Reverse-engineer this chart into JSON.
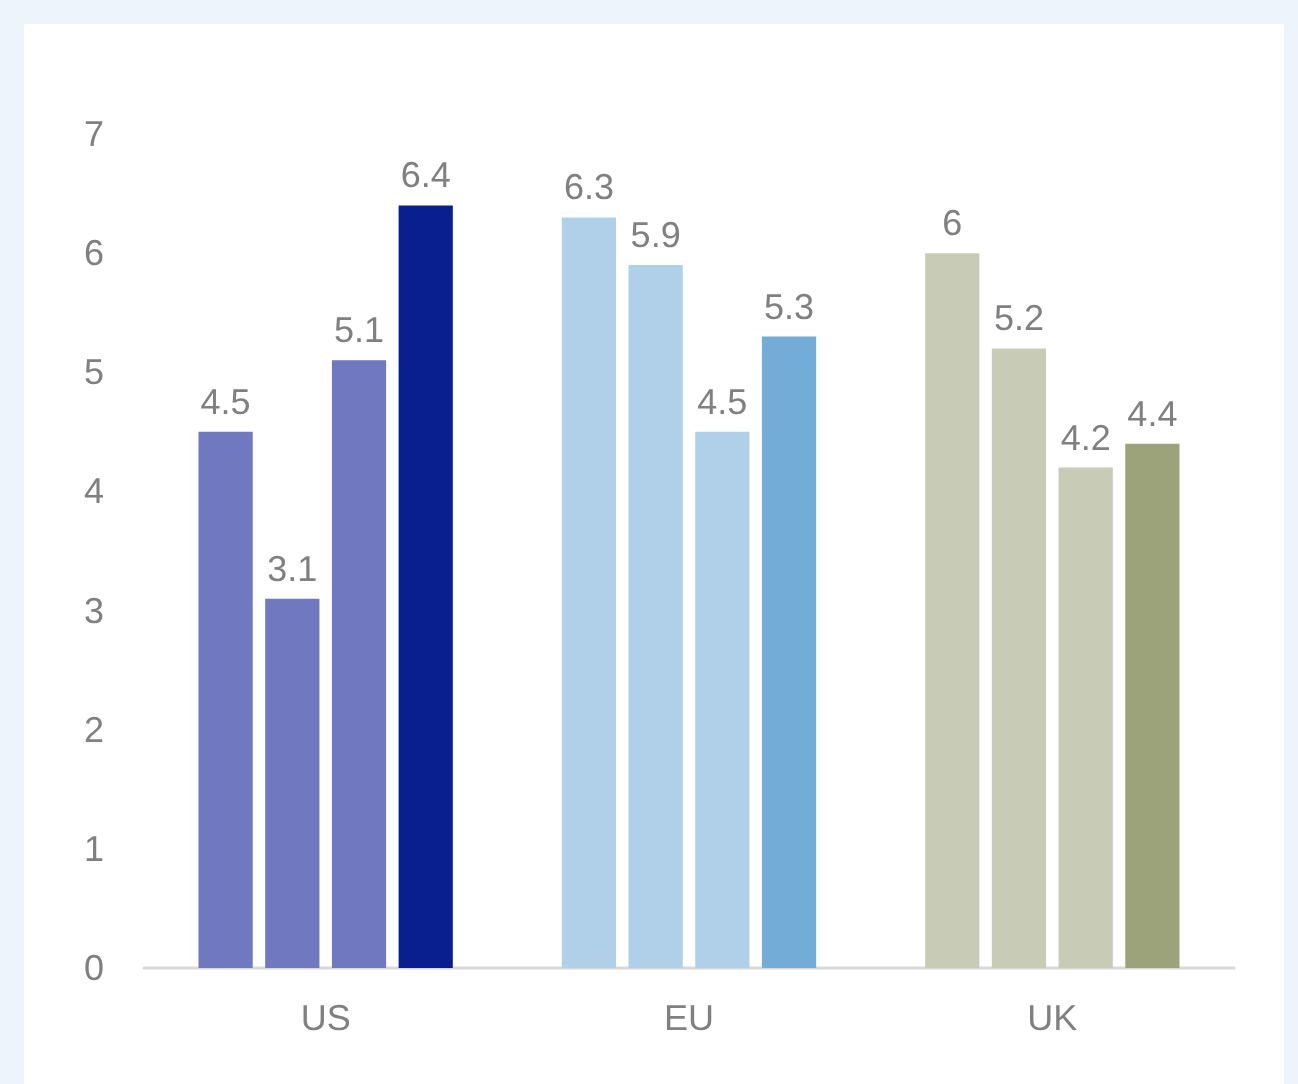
{
  "chart_data": {
    "type": "bar",
    "categories": [
      "US",
      "EU",
      "UK"
    ],
    "series": [
      {
        "colors": [
          "#7079bf",
          "#b0d0ea",
          "#c8cbb5"
        ],
        "values": [
          4.5,
          6.3,
          6
        ]
      },
      {
        "colors": [
          "#7079bf",
          "#b0d0ea",
          "#c8cbb5"
        ],
        "values": [
          3.1,
          5.9,
          5.2
        ]
      },
      {
        "colors": [
          "#7079bf",
          "#b0d0ea",
          "#c8cbb5"
        ],
        "values": [
          5.1,
          4.5,
          4.2
        ]
      },
      {
        "colors": [
          "#0a1f8f",
          "#74acd8",
          "#9ca37b"
        ],
        "values": [
          6.4,
          5.3,
          4.4
        ]
      }
    ],
    "ylim": [
      0,
      7
    ],
    "yticks": [
      0,
      1,
      2,
      3,
      4,
      5,
      6,
      7
    ],
    "grid": false,
    "data_labels": true
  }
}
